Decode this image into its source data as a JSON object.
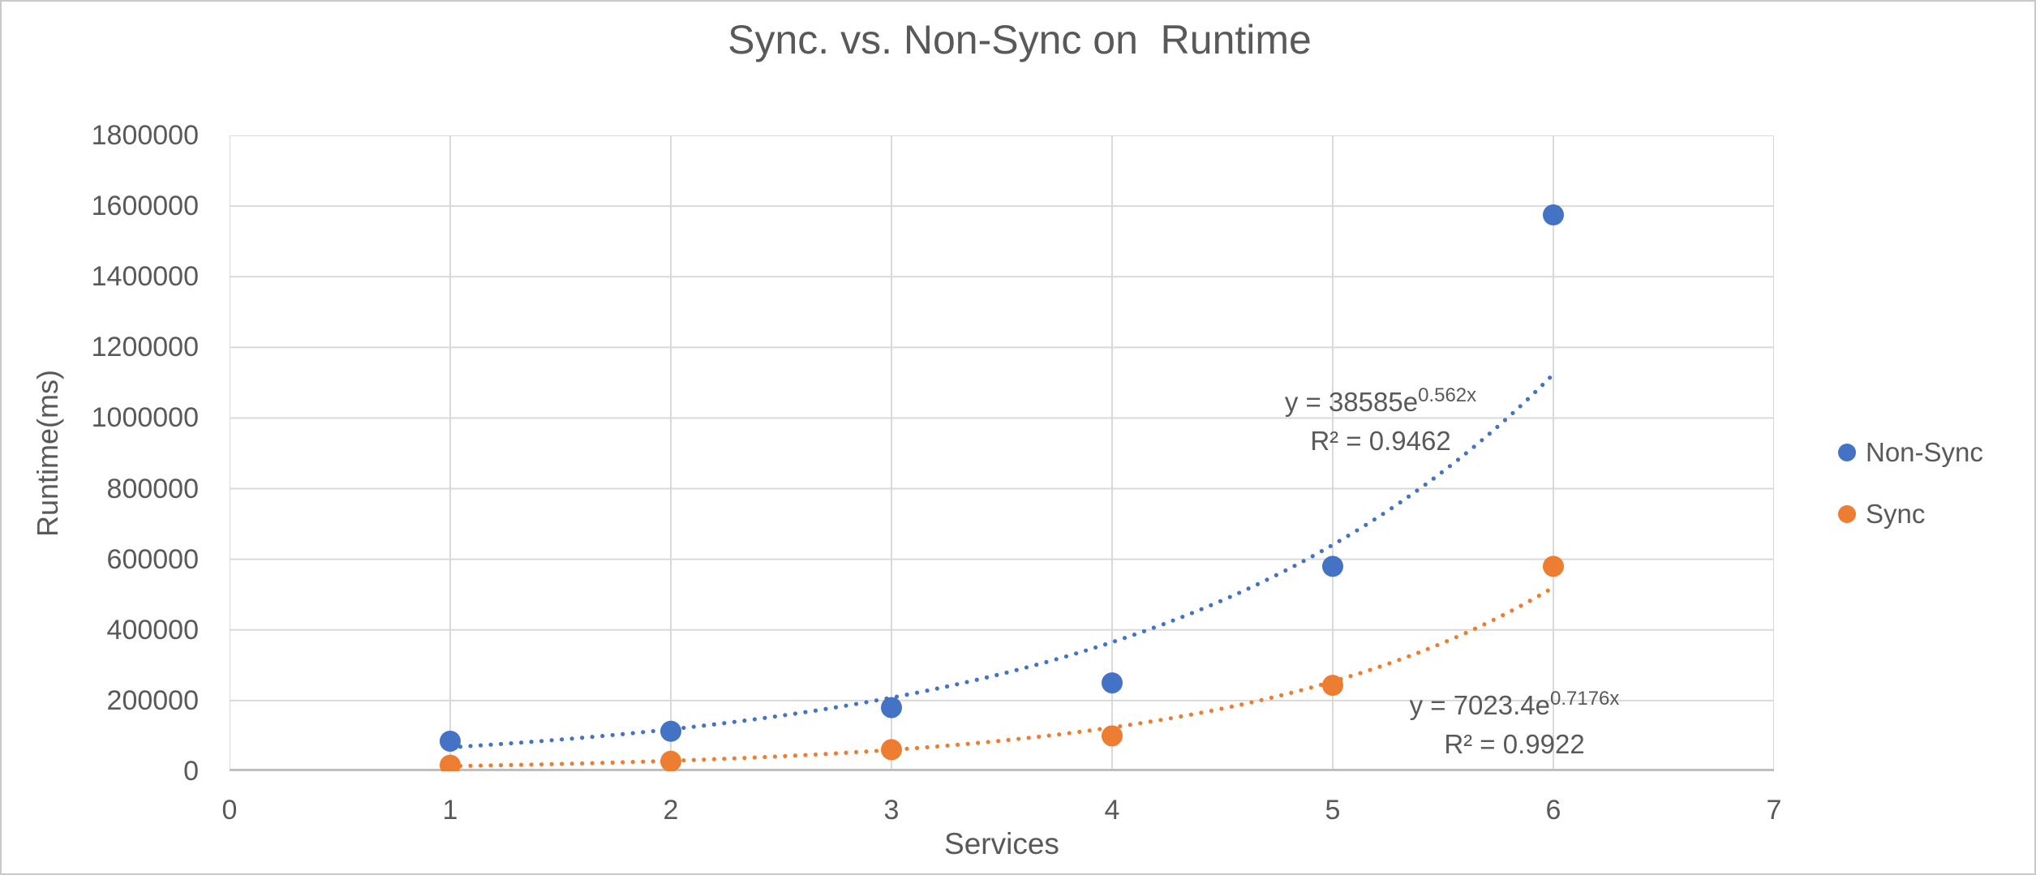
{
  "chart_data": {
    "type": "scatter",
    "title": "Sync. vs. Non-Sync on  Runtime",
    "xlabel": "Services",
    "ylabel": "Runtime(ms)",
    "xlim": [
      0,
      7
    ],
    "ylim": [
      0,
      1800000
    ],
    "x_ticks": [
      0,
      1,
      2,
      3,
      4,
      5,
      6,
      7
    ],
    "y_ticks": [
      0,
      200000,
      400000,
      600000,
      800000,
      1000000,
      1200000,
      1400000,
      1600000,
      1800000
    ],
    "grid": true,
    "legend_position": "right",
    "series": [
      {
        "name": "Non-Sync",
        "color": "#4472C4",
        "x": [
          1,
          2,
          3,
          4,
          5,
          6
        ],
        "y": [
          85000,
          113000,
          180000,
          250000,
          580000,
          1575000
        ],
        "trendline": {
          "type": "exponential",
          "a": 38585,
          "b": 0.562,
          "equation_prefix": "y = 38585e",
          "equation_exponent": "0.562x",
          "r_squared_label": "R² = 0.9462"
        }
      },
      {
        "name": "Sync",
        "color": "#ED7D31",
        "x": [
          1,
          2,
          3,
          4,
          5,
          6
        ],
        "y": [
          17000,
          28000,
          61000,
          100000,
          243000,
          580000
        ],
        "trendline": {
          "type": "exponential",
          "a": 7023.4,
          "b": 0.7176,
          "equation_prefix": "y = 7023.4e",
          "equation_exponent": "0.7176x",
          "r_squared_label": "R² = 0.9922"
        }
      }
    ]
  },
  "legend": {
    "items": [
      {
        "label": "Non-Sync",
        "color": "#4472C4"
      },
      {
        "label": "Sync",
        "color": "#ED7D31"
      }
    ]
  },
  "colors": {
    "gridline": "#D9D9D9",
    "axis_line": "#BFBFBF",
    "text": "#595959"
  }
}
